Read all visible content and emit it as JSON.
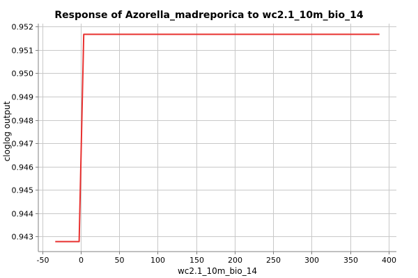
{
  "chart_data": {
    "type": "line",
    "title": "Response of Azorella_madreporica to wc2.1_10m_bio_14",
    "xlabel": "wc2.1_10m_bio_14",
    "ylabel": "cloglog output",
    "xlim": [
      -55,
      410
    ],
    "ylim": [
      0.94235,
      0.95213
    ],
    "x_ticks": [
      -50,
      0,
      50,
      100,
      150,
      200,
      250,
      300,
      350,
      400
    ],
    "x_tick_labels": [
      "-50",
      "0",
      "50",
      "100",
      "150",
      "200",
      "250",
      "300",
      "350",
      "400"
    ],
    "y_ticks": [
      0.943,
      0.944,
      0.945,
      0.946,
      0.947,
      0.948,
      0.949,
      0.95,
      0.951,
      0.952
    ],
    "y_tick_labels": [
      "0.943",
      "0.944",
      "0.945",
      "0.946",
      "0.947",
      "0.948",
      "0.949",
      "0.950",
      "0.951",
      "0.952"
    ],
    "grid": true,
    "series": [
      {
        "color": "#e8302f",
        "x": [
          -33,
          -2,
          4,
          388
        ],
        "y": [
          0.94278,
          0.94278,
          0.95167,
          0.95167
        ]
      }
    ]
  }
}
